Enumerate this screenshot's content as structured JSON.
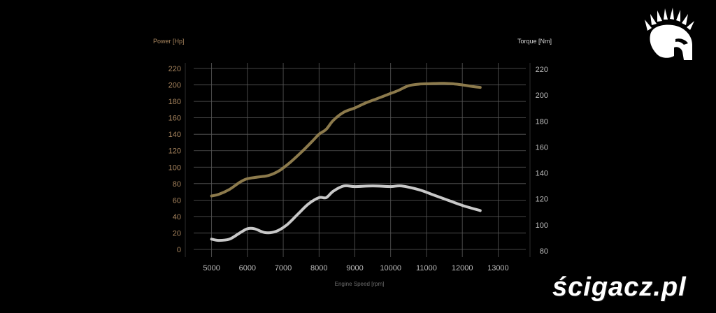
{
  "brand": {
    "watermark_text": "ścigacz.pl",
    "logo_icon": "spartan-helmet-icon"
  },
  "chart_data": {
    "type": "line",
    "left_axis_label": "Power [Hp]",
    "right_axis_label": "Torque [Nm]",
    "xlabel": "Engine Speed [rpm]",
    "xlim": [
      4000,
      13500
    ],
    "x_ticks": [
      5000,
      6000,
      7000,
      8000,
      9000,
      10000,
      11000,
      12000,
      13000
    ],
    "y_left_lim": [
      0,
      220
    ],
    "y_left_ticks": [
      0,
      20,
      40,
      60,
      80,
      100,
      120,
      140,
      160,
      180,
      200,
      220
    ],
    "y_right_lim": [
      80,
      220
    ],
    "y_right_ticks": [
      80,
      100,
      120,
      140,
      160,
      180,
      200,
      220
    ],
    "grid": true,
    "series": [
      {
        "axis": "left",
        "color": "#8c7a4c",
        "points": [
          [
            5000,
            65
          ],
          [
            5200,
            67
          ],
          [
            5500,
            73
          ],
          [
            5800,
            82
          ],
          [
            6000,
            86
          ],
          [
            6300,
            88
          ],
          [
            6600,
            90
          ],
          [
            6900,
            96
          ],
          [
            7200,
            106
          ],
          [
            7500,
            118
          ],
          [
            7800,
            131
          ],
          [
            8000,
            140
          ],
          [
            8200,
            146
          ],
          [
            8400,
            157
          ],
          [
            8700,
            167
          ],
          [
            9000,
            172
          ],
          [
            9300,
            178
          ],
          [
            9600,
            183
          ],
          [
            9900,
            188
          ],
          [
            10200,
            193
          ],
          [
            10500,
            199
          ],
          [
            10800,
            201
          ],
          [
            11100,
            201.5
          ],
          [
            11400,
            202
          ],
          [
            11700,
            201.5
          ],
          [
            12000,
            200
          ],
          [
            12300,
            198
          ],
          [
            12500,
            197
          ]
        ]
      },
      {
        "axis": "right",
        "color": "#c8c8c8",
        "points": [
          [
            5000,
            89
          ],
          [
            5200,
            88
          ],
          [
            5500,
            89
          ],
          [
            5800,
            94
          ],
          [
            6000,
            97
          ],
          [
            6200,
            97
          ],
          [
            6500,
            94
          ],
          [
            6800,
            95
          ],
          [
            7100,
            100
          ],
          [
            7400,
            108
          ],
          [
            7700,
            116
          ],
          [
            8000,
            121
          ],
          [
            8200,
            121
          ],
          [
            8400,
            126
          ],
          [
            8700,
            130
          ],
          [
            9000,
            129.5
          ],
          [
            9500,
            130
          ],
          [
            10000,
            129.5
          ],
          [
            10300,
            130
          ],
          [
            10800,
            127
          ],
          [
            11200,
            123
          ],
          [
            11600,
            119
          ],
          [
            12000,
            115
          ],
          [
            12500,
            111
          ]
        ]
      }
    ]
  }
}
